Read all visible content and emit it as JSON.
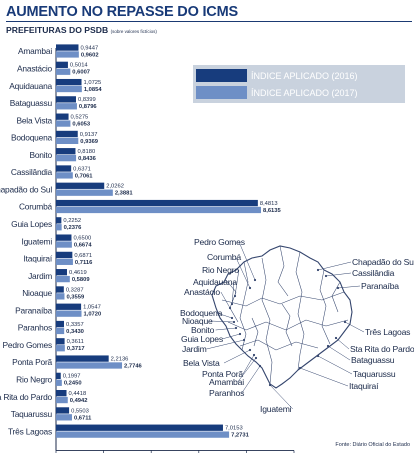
{
  "title": "AUMENTO NO REPASSE DO ICMS",
  "subtitle": "PREFEITURAS DO PSDB",
  "subtitle_note": "(sobre valores fictícios)",
  "source": "Fonte: Diário Oficial do Estado",
  "colors": {
    "series_2016": "#173c7d",
    "series_2017": "#6e8fc6",
    "legend_bg": "#c9d2de",
    "map_line": "#34456d"
  },
  "chart_data": {
    "type": "bar",
    "orientation": "horizontal",
    "xlim": [
      0,
      10
    ],
    "xticks": [
      0,
      2,
      4,
      6,
      8,
      10
    ],
    "legend_position": "top-right",
    "grid": false,
    "categories": [
      "Amambai",
      "Anastácio",
      "Aquidauana",
      "Bataguassu",
      "Bela Vista",
      "Bodoquena",
      "Bonito",
      "Cassilândia",
      "Chapadão do Sul",
      "Corumbá",
      "Guia Lopes",
      "Iguatemi",
      "Itaquiraí",
      "Jardim",
      "Nioaque",
      "Paranaíba",
      "Paranhos",
      "Pedro Gomes",
      "Ponta Porã",
      "Rio Negro",
      "Sta Rita do Pardo",
      "Taquarussu",
      "Três Lagoas"
    ],
    "series": [
      {
        "name": "ÍNDICE APLICADO (2016)",
        "values": [
          0.9447,
          0.5014,
          1.0725,
          0.8399,
          0.5275,
          0.9137,
          0.818,
          0.6371,
          2.0262,
          8.4813,
          0.2252,
          0.65,
          0.6871,
          0.4619,
          0.3287,
          1.0547,
          0.3357,
          0.3611,
          2.2136,
          0.1997,
          0.4418,
          0.5503,
          7.0153
        ],
        "labels": [
          "0,9447",
          "0,5014",
          "1,0725",
          "0,8399",
          "0,5275",
          "0,9137",
          "0,8180",
          "0,6371",
          "2,0262",
          "8,4813",
          "0,2252",
          "0,6500",
          "0,6871",
          "0,4619",
          "0,3287",
          "1,0547",
          "0,3357",
          "0,3611",
          "2,2136",
          "0,1997",
          "0,4418",
          "0,5503",
          "7,0153"
        ]
      },
      {
        "name": "ÍNDICE APLICADO (2017)",
        "values": [
          0.9602,
          0.6007,
          1.0854,
          0.8796,
          0.6053,
          0.9369,
          0.8436,
          0.7061,
          2.3881,
          8.6135,
          0.2376,
          0.6674,
          0.7116,
          0.5809,
          0.3559,
          1.072,
          0.343,
          0.3717,
          2.7746,
          0.245,
          0.4942,
          0.6711,
          7.2731
        ],
        "labels": [
          "0,9602",
          "0,6007",
          "1,0854",
          "0,8796",
          "0,6053",
          "0,9369",
          "0,8436",
          "0,7061",
          "2,3881",
          "8,6135",
          "0,2376",
          "0,6674",
          "0,7116",
          "0,5809",
          "0,3559",
          "1,0720",
          "0,3430",
          "0,3717",
          "2,7746",
          "0,2450",
          "0,4942",
          "0,6711",
          "7,2731"
        ]
      }
    ]
  },
  "map": {
    "labels": [
      "Pedro Gomes",
      "Corumbá",
      "Rio Negro",
      "Aquidauana",
      "Anastácio",
      "Bodoquena",
      "Nioaque",
      "Bonito",
      "Guia Lopes",
      "Jardim",
      "Bela Vista",
      "Ponta Porã",
      "Amambai",
      "Paranhos",
      "Iguatemi",
      "Chapadão do Sul",
      "Cassilândia",
      "Paranaíba",
      "Três Lagoas",
      "Sta Rita do Pardo",
      "Bataguassu",
      "Taquarussu",
      "Itaquiraí"
    ]
  }
}
